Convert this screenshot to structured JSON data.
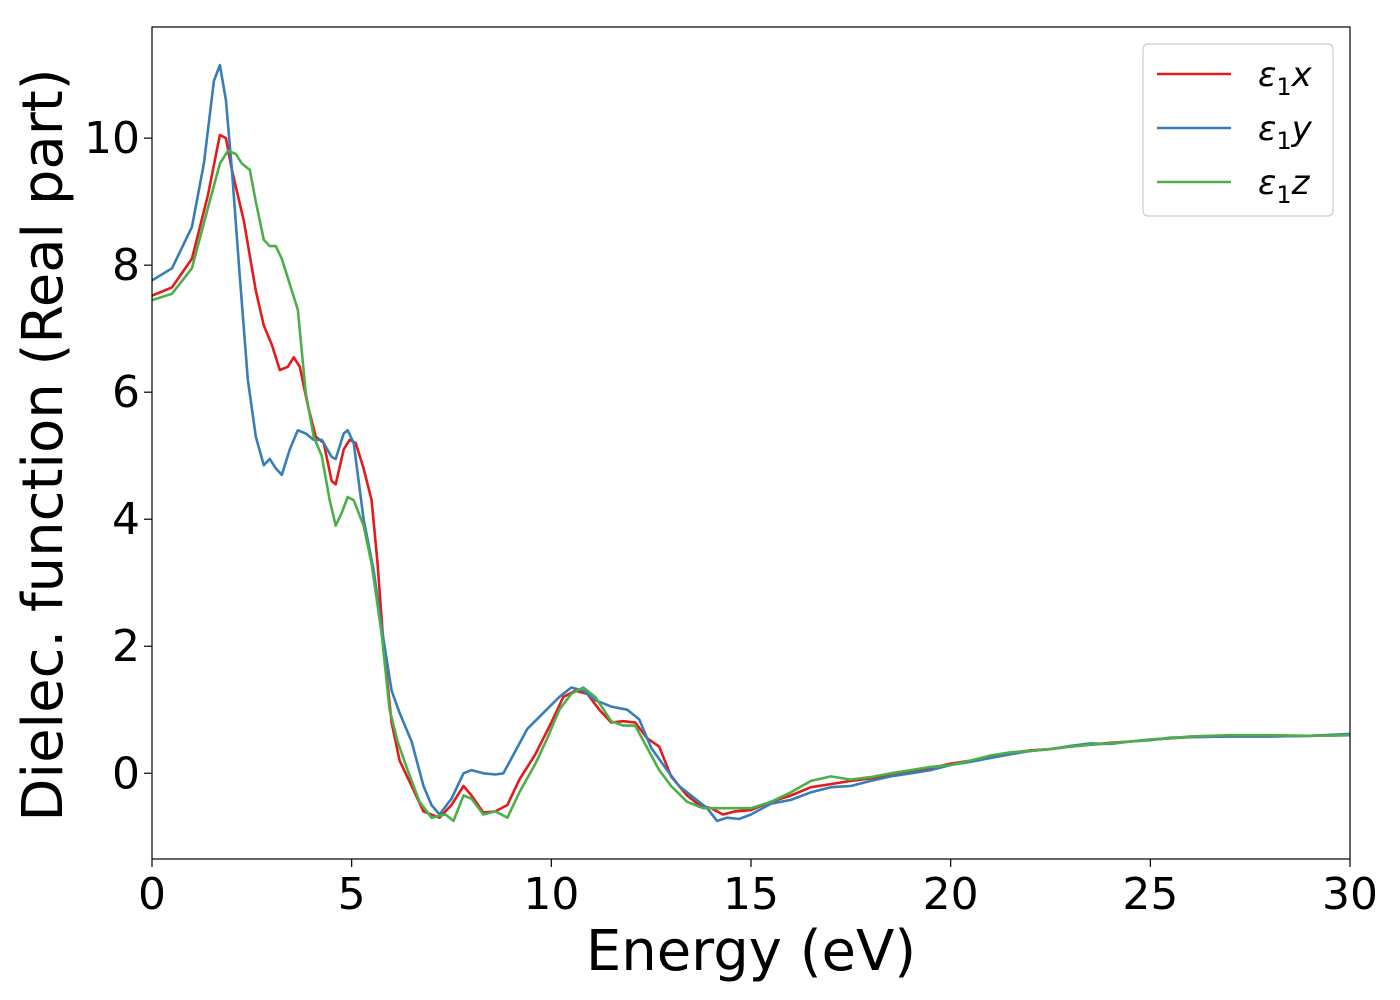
{
  "chart_data": {
    "type": "line",
    "xlabel": "Energy (eV)",
    "ylabel": "Dielec. function (Real part)",
    "xlim": [
      0,
      30
    ],
    "ylim": [
      -1.35,
      11.75
    ],
    "x_ticks": [
      0,
      5,
      10,
      15,
      20,
      25,
      30
    ],
    "y_ticks": [
      0,
      2,
      4,
      6,
      8,
      10
    ],
    "grid": false,
    "legend_position": "top-right",
    "series": [
      {
        "name": "ε₁x",
        "legend_base": "ε",
        "legend_sub": "1",
        "legend_suffix": "x",
        "color": "#e41a1c",
        "points": [
          [
            0,
            7.52
          ],
          [
            0.5,
            7.65
          ],
          [
            1.0,
            8.1
          ],
          [
            1.4,
            9.1
          ],
          [
            1.7,
            10.05
          ],
          [
            1.85,
            10.0
          ],
          [
            2.0,
            9.5
          ],
          [
            2.3,
            8.7
          ],
          [
            2.6,
            7.6
          ],
          [
            2.8,
            7.05
          ],
          [
            3.0,
            6.75
          ],
          [
            3.2,
            6.35
          ],
          [
            3.4,
            6.4
          ],
          [
            3.55,
            6.55
          ],
          [
            3.7,
            6.4
          ],
          [
            3.9,
            5.8
          ],
          [
            4.1,
            5.3
          ],
          [
            4.3,
            5.2
          ],
          [
            4.5,
            4.6
          ],
          [
            4.6,
            4.55
          ],
          [
            4.8,
            5.1
          ],
          [
            4.95,
            5.25
          ],
          [
            5.1,
            5.2
          ],
          [
            5.3,
            4.8
          ],
          [
            5.5,
            4.3
          ],
          [
            5.65,
            3.3
          ],
          [
            5.8,
            2.0
          ],
          [
            6.0,
            0.8
          ],
          [
            6.2,
            0.2
          ],
          [
            6.5,
            -0.2
          ],
          [
            6.8,
            -0.6
          ],
          [
            7.2,
            -0.7
          ],
          [
            7.5,
            -0.5
          ],
          [
            7.8,
            -0.2
          ],
          [
            8.0,
            -0.35
          ],
          [
            8.3,
            -0.62
          ],
          [
            8.6,
            -0.6
          ],
          [
            8.9,
            -0.5
          ],
          [
            9.2,
            -0.1
          ],
          [
            9.6,
            0.3
          ],
          [
            10.0,
            0.8
          ],
          [
            10.3,
            1.2
          ],
          [
            10.6,
            1.3
          ],
          [
            10.9,
            1.25
          ],
          [
            11.2,
            1.0
          ],
          [
            11.5,
            0.8
          ],
          [
            11.8,
            0.82
          ],
          [
            12.1,
            0.8
          ],
          [
            12.4,
            0.55
          ],
          [
            12.7,
            0.42
          ],
          [
            13.0,
            -0.05
          ],
          [
            13.4,
            -0.35
          ],
          [
            13.7,
            -0.5
          ],
          [
            14.0,
            -0.55
          ],
          [
            14.3,
            -0.65
          ],
          [
            14.6,
            -0.6
          ],
          [
            15.0,
            -0.58
          ],
          [
            15.5,
            -0.45
          ],
          [
            16.0,
            -0.35
          ],
          [
            16.5,
            -0.22
          ],
          [
            17.0,
            -0.17
          ],
          [
            17.5,
            -0.12
          ],
          [
            18.0,
            -0.08
          ],
          [
            18.5,
            -0.02
          ],
          [
            19.0,
            0.03
          ],
          [
            19.5,
            0.08
          ],
          [
            20.0,
            0.15
          ],
          [
            20.5,
            0.2
          ],
          [
            21.0,
            0.26
          ],
          [
            21.5,
            0.32
          ],
          [
            22.0,
            0.36
          ],
          [
            22.5,
            0.38
          ],
          [
            23.0,
            0.42
          ],
          [
            23.5,
            0.45
          ],
          [
            24.0,
            0.48
          ],
          [
            24.5,
            0.5
          ],
          [
            25.0,
            0.53
          ],
          [
            25.5,
            0.55
          ],
          [
            26.0,
            0.57
          ],
          [
            27.0,
            0.58
          ],
          [
            28.0,
            0.58
          ],
          [
            29.0,
            0.59
          ],
          [
            30.0,
            0.6
          ]
        ]
      },
      {
        "name": "ε₁y",
        "legend_base": "ε",
        "legend_sub": "1",
        "legend_suffix": "y",
        "color": "#377eb8",
        "points": [
          [
            0,
            7.76
          ],
          [
            0.5,
            7.95
          ],
          [
            1.0,
            8.6
          ],
          [
            1.3,
            9.6
          ],
          [
            1.55,
            10.9
          ],
          [
            1.7,
            11.15
          ],
          [
            1.85,
            10.6
          ],
          [
            2.0,
            9.5
          ],
          [
            2.2,
            7.8
          ],
          [
            2.4,
            6.2
          ],
          [
            2.6,
            5.3
          ],
          [
            2.8,
            4.85
          ],
          [
            2.95,
            4.95
          ],
          [
            3.1,
            4.8
          ],
          [
            3.25,
            4.7
          ],
          [
            3.45,
            5.1
          ],
          [
            3.65,
            5.4
          ],
          [
            3.85,
            5.35
          ],
          [
            4.05,
            5.25
          ],
          [
            4.25,
            5.25
          ],
          [
            4.5,
            4.98
          ],
          [
            4.6,
            4.95
          ],
          [
            4.8,
            5.35
          ],
          [
            4.9,
            5.4
          ],
          [
            5.05,
            5.2
          ],
          [
            5.3,
            4.0
          ],
          [
            5.55,
            3.2
          ],
          [
            5.75,
            2.3
          ],
          [
            6.0,
            1.3
          ],
          [
            6.2,
            0.95
          ],
          [
            6.5,
            0.5
          ],
          [
            6.8,
            -0.2
          ],
          [
            7.0,
            -0.5
          ],
          [
            7.2,
            -0.65
          ],
          [
            7.5,
            -0.4
          ],
          [
            7.8,
            0.0
          ],
          [
            8.0,
            0.05
          ],
          [
            8.3,
            0.0
          ],
          [
            8.6,
            -0.02
          ],
          [
            8.8,
            0.0
          ],
          [
            9.1,
            0.35
          ],
          [
            9.4,
            0.7
          ],
          [
            9.8,
            0.95
          ],
          [
            10.2,
            1.2
          ],
          [
            10.5,
            1.35
          ],
          [
            10.8,
            1.3
          ],
          [
            11.1,
            1.15
          ],
          [
            11.5,
            1.05
          ],
          [
            11.9,
            1.0
          ],
          [
            12.2,
            0.85
          ],
          [
            12.5,
            0.4
          ],
          [
            12.9,
            0.05
          ],
          [
            13.2,
            -0.2
          ],
          [
            13.6,
            -0.4
          ],
          [
            13.9,
            -0.55
          ],
          [
            14.15,
            -0.75
          ],
          [
            14.4,
            -0.7
          ],
          [
            14.7,
            -0.72
          ],
          [
            15.0,
            -0.65
          ],
          [
            15.5,
            -0.48
          ],
          [
            16.0,
            -0.42
          ],
          [
            16.5,
            -0.3
          ],
          [
            17.0,
            -0.22
          ],
          [
            17.5,
            -0.2
          ],
          [
            18.0,
            -0.12
          ],
          [
            18.5,
            -0.05
          ],
          [
            19.0,
            0.0
          ],
          [
            19.5,
            0.05
          ],
          [
            20.0,
            0.13
          ],
          [
            20.5,
            0.18
          ],
          [
            21.0,
            0.24
          ],
          [
            21.5,
            0.3
          ],
          [
            22.0,
            0.35
          ],
          [
            22.5,
            0.38
          ],
          [
            23.0,
            0.43
          ],
          [
            23.5,
            0.47
          ],
          [
            24.0,
            0.46
          ],
          [
            24.5,
            0.5
          ],
          [
            25.0,
            0.52
          ],
          [
            25.5,
            0.56
          ],
          [
            26.0,
            0.57
          ],
          [
            27.0,
            0.58
          ],
          [
            28.0,
            0.58
          ],
          [
            29.0,
            0.59
          ],
          [
            30.0,
            0.62
          ]
        ]
      },
      {
        "name": "ε₁z",
        "legend_base": "ε",
        "legend_sub": "1",
        "legend_suffix": "z",
        "color": "#4daf4a",
        "points": [
          [
            0,
            7.45
          ],
          [
            0.5,
            7.55
          ],
          [
            1.0,
            7.95
          ],
          [
            1.4,
            8.9
          ],
          [
            1.7,
            9.6
          ],
          [
            1.9,
            9.8
          ],
          [
            2.1,
            9.75
          ],
          [
            2.25,
            9.6
          ],
          [
            2.45,
            9.5
          ],
          [
            2.6,
            9.0
          ],
          [
            2.8,
            8.4
          ],
          [
            2.95,
            8.3
          ],
          [
            3.1,
            8.3
          ],
          [
            3.25,
            8.1
          ],
          [
            3.45,
            7.7
          ],
          [
            3.65,
            7.3
          ],
          [
            3.85,
            6.0
          ],
          [
            4.05,
            5.3
          ],
          [
            4.25,
            5.0
          ],
          [
            4.45,
            4.3
          ],
          [
            4.6,
            3.9
          ],
          [
            4.75,
            4.1
          ],
          [
            4.9,
            4.35
          ],
          [
            5.05,
            4.3
          ],
          [
            5.3,
            3.9
          ],
          [
            5.5,
            3.3
          ],
          [
            5.75,
            2.2
          ],
          [
            5.95,
            1.0
          ],
          [
            6.15,
            0.5
          ],
          [
            6.4,
            0.05
          ],
          [
            6.7,
            -0.45
          ],
          [
            7.0,
            -0.7
          ],
          [
            7.35,
            -0.65
          ],
          [
            7.55,
            -0.75
          ],
          [
            7.8,
            -0.35
          ],
          [
            8.0,
            -0.4
          ],
          [
            8.3,
            -0.65
          ],
          [
            8.6,
            -0.6
          ],
          [
            8.9,
            -0.7
          ],
          [
            9.2,
            -0.3
          ],
          [
            9.6,
            0.15
          ],
          [
            9.9,
            0.55
          ],
          [
            10.2,
            1.0
          ],
          [
            10.5,
            1.25
          ],
          [
            10.8,
            1.35
          ],
          [
            11.1,
            1.2
          ],
          [
            11.5,
            0.82
          ],
          [
            11.8,
            0.75
          ],
          [
            12.1,
            0.75
          ],
          [
            12.4,
            0.4
          ],
          [
            12.7,
            0.05
          ],
          [
            13.0,
            -0.2
          ],
          [
            13.4,
            -0.45
          ],
          [
            13.8,
            -0.55
          ],
          [
            14.2,
            -0.55
          ],
          [
            14.6,
            -0.55
          ],
          [
            15.0,
            -0.55
          ],
          [
            15.5,
            -0.45
          ],
          [
            16.0,
            -0.3
          ],
          [
            16.5,
            -0.12
          ],
          [
            17.0,
            -0.05
          ],
          [
            17.5,
            -0.1
          ],
          [
            18.0,
            -0.06
          ],
          [
            18.5,
            0.0
          ],
          [
            19.0,
            0.05
          ],
          [
            19.5,
            0.1
          ],
          [
            20.0,
            0.13
          ],
          [
            20.5,
            0.2
          ],
          [
            21.0,
            0.28
          ],
          [
            21.5,
            0.33
          ],
          [
            22.0,
            0.35
          ],
          [
            22.5,
            0.38
          ],
          [
            23.0,
            0.42
          ],
          [
            23.5,
            0.45
          ],
          [
            24.0,
            0.47
          ],
          [
            24.5,
            0.5
          ],
          [
            25.0,
            0.53
          ],
          [
            25.5,
            0.55
          ],
          [
            26.0,
            0.58
          ],
          [
            27.0,
            0.6
          ],
          [
            28.0,
            0.6
          ],
          [
            29.0,
            0.59
          ],
          [
            30.0,
            0.6
          ]
        ]
      }
    ]
  }
}
